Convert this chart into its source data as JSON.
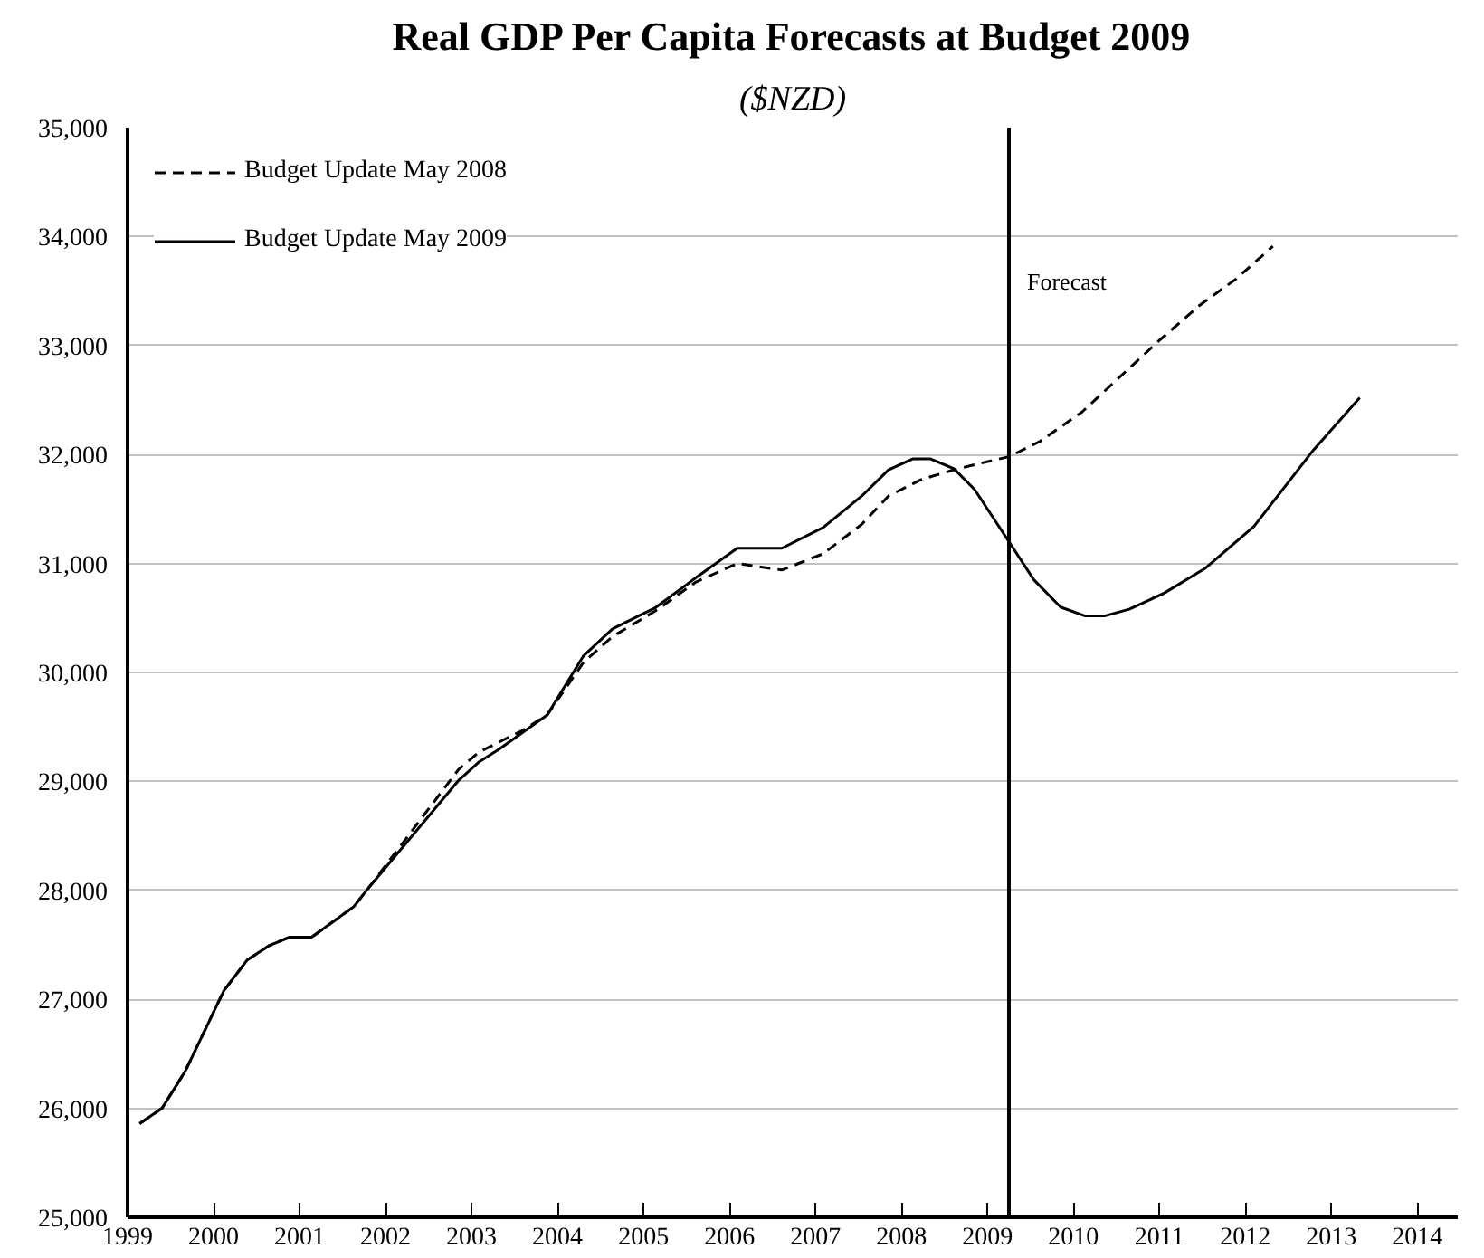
{
  "chart_data": {
    "type": "line",
    "title": "Real GDP Per Capita Forecasts at Budget 2009",
    "subtitle": "($NZD)",
    "xlim": [
      1999,
      2014.47
    ],
    "xticks": [
      1999,
      2000,
      2001,
      2002,
      2003,
      2004,
      2005,
      2006,
      2007,
      2008,
      2009,
      2010,
      2011,
      2012,
      2013,
      2014
    ],
    "ylim": [
      25000,
      35000
    ],
    "yticks": [
      {
        "value": 25000,
        "label": "25,000"
      },
      {
        "value": 26000,
        "label": "26,000"
      },
      {
        "value": 27000,
        "label": "27,000"
      },
      {
        "value": 28000,
        "label": "28,000"
      },
      {
        "value": 29000,
        "label": "29,000"
      },
      {
        "value": 30000,
        "label": "30,000"
      },
      {
        "value": 31000,
        "label": "31,000"
      },
      {
        "value": 32000,
        "label": "32,000"
      },
      {
        "value": 33000,
        "label": "33,000"
      },
      {
        "value": 34000,
        "label": "34,000"
      },
      {
        "value": 35000,
        "label": "35,000"
      }
    ],
    "grid": "y",
    "legend": "top left",
    "marker": "none",
    "ref_lines": [
      {
        "axis": "x",
        "value": 2009.25,
        "label": "Forecast",
        "color": "#000000"
      }
    ],
    "series": [
      {
        "name": "Budget Update May 2008",
        "color": "#000000",
        "line_style": "dashed",
        "x": [
          1999.14,
          1999.4,
          1999.67,
          2000.12,
          2000.39,
          2000.64,
          2000.88,
          2001.14,
          2001.63,
          2001.81,
          2002.85,
          2003.09,
          2003.6,
          2003.88,
          2004.3,
          2004.64,
          2005.13,
          2005.61,
          2006.09,
          2006.61,
          2007.09,
          2007.54,
          2007.85,
          2008.23,
          2008.61,
          2008.92,
          2009.25,
          2009.61,
          2010.1,
          2010.51,
          2010.99,
          2011.47,
          2011.89,
          2012.32
        ],
        "values": [
          25860,
          26000,
          26340,
          27080,
          27360,
          27490,
          27570,
          27570,
          27850,
          28030,
          29110,
          29270,
          29470,
          29610,
          30090,
          30330,
          30560,
          30830,
          31000,
          30940,
          31090,
          31360,
          31620,
          31770,
          31860,
          31920,
          31980,
          32120,
          32390,
          32690,
          33040,
          33370,
          33610,
          33910
        ]
      },
      {
        "name": "Budget Update May 2009",
        "color": "#000000",
        "line_style": "solid",
        "x": [
          1999.14,
          1999.4,
          1999.67,
          2000.12,
          2000.39,
          2000.64,
          2000.88,
          2001.14,
          2001.63,
          2001.81,
          2002.85,
          2003.09,
          2003.33,
          2003.88,
          2004.3,
          2004.64,
          2004.92,
          2005.13,
          2005.61,
          2006.09,
          2006.61,
          2007.09,
          2007.54,
          2007.85,
          2008.13,
          2008.34,
          2008.61,
          2008.85,
          2009.25,
          2009.54,
          2009.85,
          2010.13,
          2010.37,
          2010.65,
          2011.06,
          2011.54,
          2012.1,
          2012.79,
          2013.33
        ],
        "values": [
          25860,
          26000,
          26340,
          27080,
          27360,
          27490,
          27570,
          27570,
          27850,
          28030,
          29010,
          29180,
          29300,
          29610,
          30150,
          30400,
          30510,
          30590,
          30870,
          31140,
          31140,
          31330,
          31620,
          31860,
          31960,
          31960,
          31870,
          31680,
          31200,
          30850,
          30600,
          30520,
          30520,
          30580,
          30730,
          30960,
          31340,
          32040,
          32520
        ]
      }
    ]
  }
}
